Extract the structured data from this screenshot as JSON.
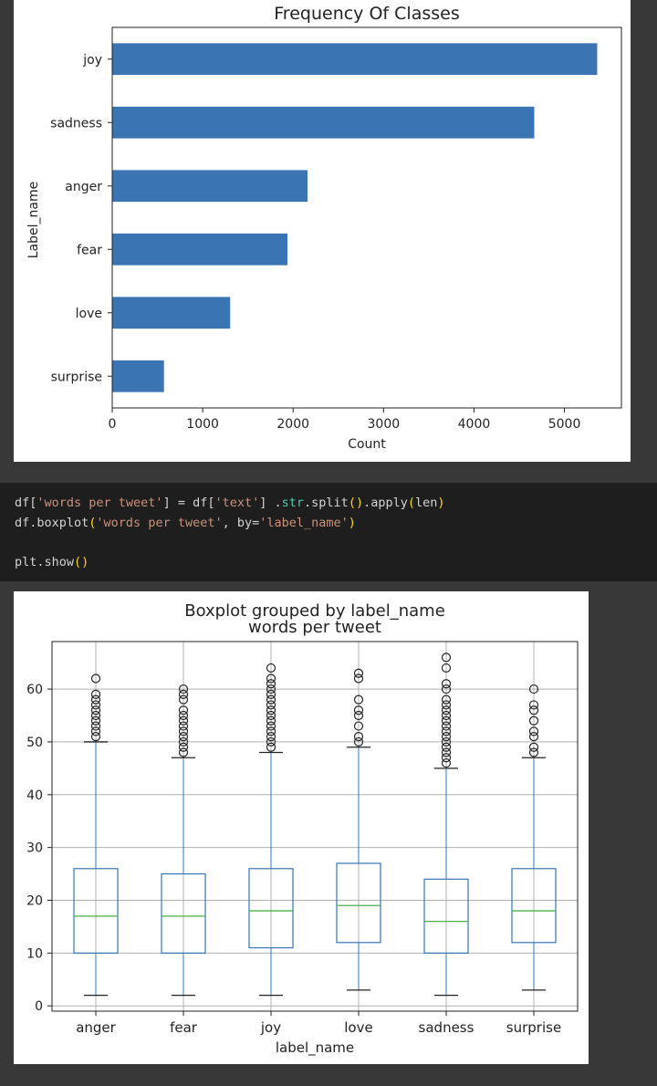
{
  "colors": {
    "bar_fill": "#3a74b2",
    "box_stroke": "#3a74b2",
    "median": "#4caf50",
    "page_bg": "#383838",
    "code_bg": "#1e1e1e"
  },
  "code_cell": {
    "lines": [
      "df['words per tweet'] = df['text'] .str.split().apply(len)",
      "df.boxplot('words per tweet', by='label_name')",
      "",
      "plt.show()"
    ]
  },
  "chart_data": [
    {
      "type": "bar",
      "orientation": "horizontal",
      "title": "Frequency Of Classes",
      "xlabel": "Count",
      "ylabel": "Label_name",
      "categories": [
        "joy",
        "sadness",
        "anger",
        "fear",
        "love",
        "surprise"
      ],
      "values": [
        5362,
        4666,
        2159,
        1937,
        1304,
        572
      ],
      "xlim": [
        0,
        5630
      ],
      "xticks": [
        0,
        1000,
        2000,
        3000,
        4000,
        5000
      ],
      "grid": false
    },
    {
      "type": "box",
      "title": "Boxplot grouped by label_name",
      "subtitle": "words per tweet",
      "xlabel": "label_name",
      "ylabel": "",
      "ylim": [
        -1,
        69
      ],
      "yticks": [
        0,
        10,
        20,
        30,
        40,
        50,
        60
      ],
      "grid": true,
      "categories": [
        "anger",
        "fear",
        "joy",
        "love",
        "sadness",
        "surprise"
      ],
      "boxes": [
        {
          "whisker_low": 2,
          "q1": 10,
          "median": 17,
          "q3": 26,
          "whisker_high": 50,
          "outliers": [
            51,
            52,
            53,
            54,
            55,
            56,
            57,
            58,
            59,
            62
          ]
        },
        {
          "whisker_low": 2,
          "q1": 10,
          "median": 17,
          "q3": 25,
          "whisker_high": 47,
          "outliers": [
            48,
            49,
            50,
            51,
            52,
            53,
            54,
            55,
            56,
            58,
            59,
            60
          ]
        },
        {
          "whisker_low": 2,
          "q1": 11,
          "median": 18,
          "q3": 26,
          "whisker_high": 48,
          "outliers": [
            49,
            50,
            51,
            52,
            53,
            54,
            55,
            56,
            57,
            58,
            59,
            60,
            61,
            62,
            64
          ]
        },
        {
          "whisker_low": 3,
          "q1": 12,
          "median": 19,
          "q3": 27,
          "whisker_high": 49,
          "outliers": [
            50,
            51,
            53,
            55,
            56,
            58,
            62,
            63
          ]
        },
        {
          "whisker_low": 2,
          "q1": 10,
          "median": 16,
          "q3": 24,
          "whisker_high": 45,
          "outliers": [
            46,
            47,
            48,
            49,
            50,
            51,
            52,
            53,
            54,
            55,
            56,
            57,
            58,
            60,
            61,
            64,
            66
          ]
        },
        {
          "whisker_low": 3,
          "q1": 12,
          "median": 18,
          "q3": 26,
          "whisker_high": 47,
          "outliers": [
            48,
            49,
            51,
            52,
            54,
            56,
            57,
            60
          ]
        }
      ]
    }
  ]
}
